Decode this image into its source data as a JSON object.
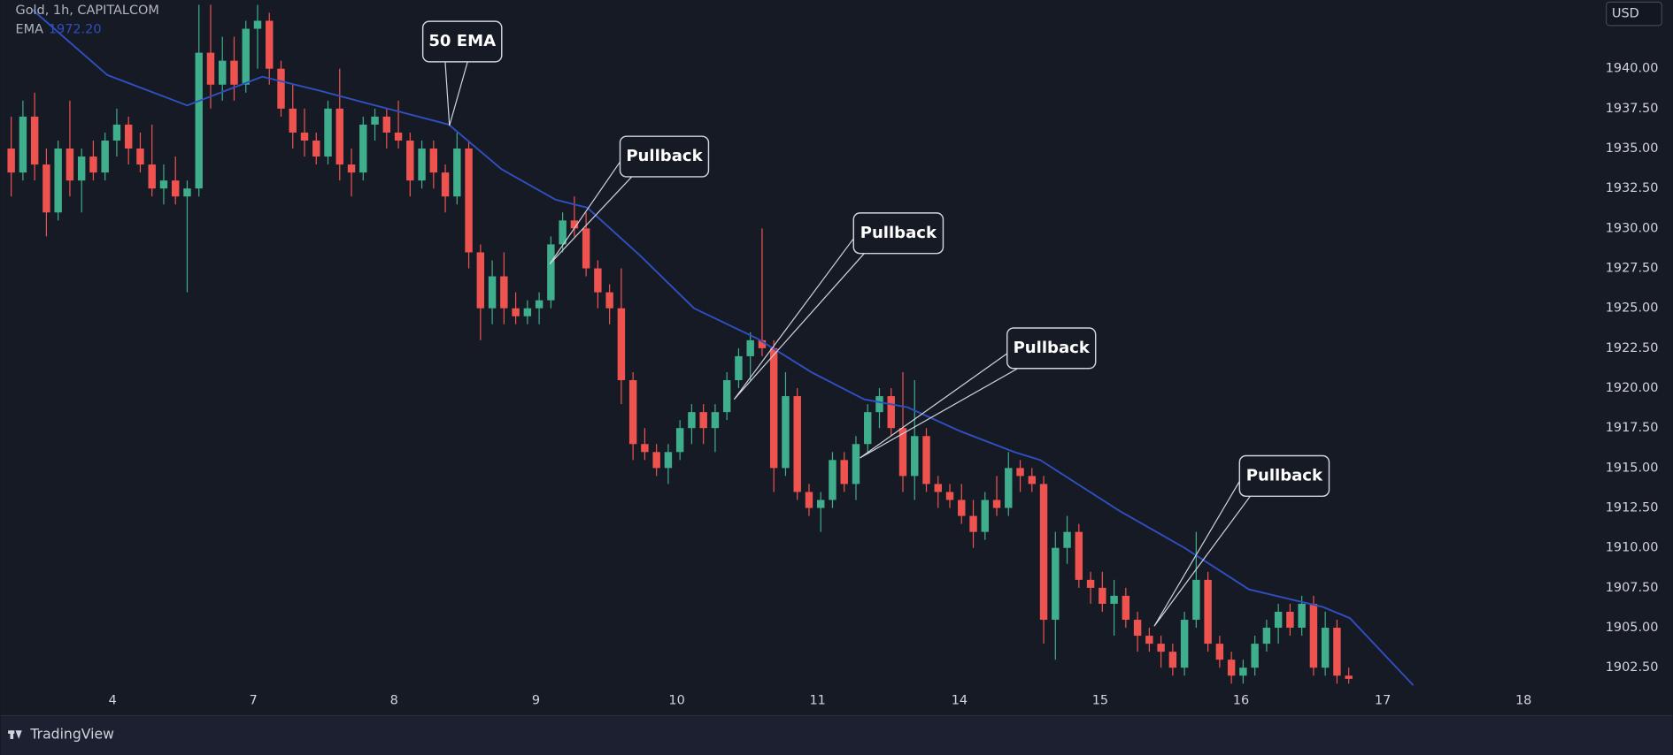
{
  "chart_data": {
    "type": "candlestick",
    "title": "Gold, 1h, CAPITALCOM",
    "currency": "USD",
    "brand": "TradingView",
    "up_color": "#3fae8c",
    "down_color": "#ef5350",
    "xlim": [
      -0.45,
      134.5
    ],
    "ylim": [
      1901.3,
      1944.3
    ],
    "xticks": [
      {
        "value": 8.64,
        "label": "4"
      },
      {
        "value": 20.64,
        "label": "7"
      },
      {
        "value": 32.64,
        "label": "8"
      },
      {
        "value": 44.73,
        "label": "9"
      },
      {
        "value": 56.73,
        "label": "10"
      },
      {
        "value": 68.73,
        "label": "11"
      },
      {
        "value": 80.82,
        "label": "14"
      },
      {
        "value": 92.82,
        "label": "15"
      },
      {
        "value": 104.82,
        "label": "16"
      },
      {
        "value": 116.9,
        "label": "17"
      },
      {
        "value": 128.9,
        "label": "18"
      }
    ],
    "yticks": [
      {
        "value": 1902.5,
        "label": "1902.50"
      },
      {
        "value": 1905,
        "label": "1905.00"
      },
      {
        "value": 1907.5,
        "label": "1907.50"
      },
      {
        "value": 1910,
        "label": "1910.00"
      },
      {
        "value": 1912.5,
        "label": "1912.50"
      },
      {
        "value": 1915,
        "label": "1915.00"
      },
      {
        "value": 1917.5,
        "label": "1917.50"
      },
      {
        "value": 1920,
        "label": "1920.00"
      },
      {
        "value": 1922.5,
        "label": "1922.50"
      },
      {
        "value": 1925,
        "label": "1925.00"
      },
      {
        "value": 1927.5,
        "label": "1927.50"
      },
      {
        "value": 1930,
        "label": "1930.00"
      },
      {
        "value": 1932.5,
        "label": "1932.50"
      },
      {
        "value": 1935,
        "label": "1935.00"
      },
      {
        "value": 1937.5,
        "label": "1937.50"
      },
      {
        "value": 1940,
        "label": "1940.00"
      }
    ],
    "grid": false,
    "x": [
      0,
      1,
      2,
      3,
      4,
      5,
      6,
      7,
      8,
      9,
      10,
      11,
      12,
      13,
      14,
      15,
      16,
      17,
      18,
      19,
      20,
      21,
      22,
      23,
      24,
      25,
      26,
      27,
      28,
      29,
      30,
      31,
      32,
      33,
      34,
      35,
      36,
      37,
      38,
      39,
      40,
      41,
      42,
      43,
      44,
      45,
      46,
      47,
      48,
      49,
      50,
      51,
      52,
      53,
      54,
      55,
      56,
      57,
      58,
      59,
      60,
      61,
      62,
      63,
      64,
      65,
      66,
      67,
      68,
      69,
      70,
      71,
      72,
      73,
      74,
      75,
      76,
      77,
      78,
      79,
      80,
      81,
      82,
      83,
      84,
      85,
      86,
      87,
      88,
      89,
      90,
      91,
      92,
      93,
      94,
      95,
      96,
      97,
      98,
      99,
      100,
      101,
      102,
      103,
      104,
      105,
      106,
      107,
      108,
      109,
      110,
      111,
      112,
      113,
      114
    ],
    "open": [
      1935,
      1933.5,
      1937,
      1934,
      1931,
      1935,
      1933,
      1934.5,
      1933.5,
      1935.5,
      1936.5,
      1935,
      1934,
      1932.5,
      1933,
      1932,
      1932.5,
      1941,
      1939,
      1940.5,
      1939,
      1942.5,
      1943,
      1940,
      1937.5,
      1936,
      1935.5,
      1934.5,
      1937.5,
      1934,
      1933.5,
      1936.5,
      1937,
      1936,
      1935.5,
      1933,
      1935,
      1933.5,
      1932,
      1935,
      1928.5,
      1925,
      1927,
      1925,
      1924.5,
      1925,
      1925.5,
      1929,
      1930.5,
      1930,
      1927.5,
      1926,
      1925,
      1920.5,
      1916.5,
      1916,
      1915,
      1916,
      1917.5,
      1918.5,
      1917.5,
      1918.5,
      1920.5,
      1922,
      1923,
      1922.5,
      1915,
      1919.5,
      1913.5,
      1912.5,
      1913,
      1915.5,
      1914,
      1916.5,
      1918.5,
      1919.5,
      1917.5,
      1914.5,
      1917,
      1914,
      1913.5,
      1913,
      1912,
      1911,
      1913,
      1912.5,
      1915,
      1914.5,
      1914,
      1905.5,
      1910,
      1911,
      1908,
      1907.5,
      1906.5,
      1907,
      1905.5,
      1904.5,
      1904,
      1903.5,
      1902.5,
      1905.5,
      1908,
      1904,
      1903,
      1902,
      1902.5,
      1904,
      1905,
      1906,
      1905,
      1906.5,
      1902.5,
      1905,
      1902
    ],
    "high": [
      1937,
      1938,
      1938.5,
      1935,
      1935.5,
      1938,
      1935,
      1935.5,
      1936,
      1937.5,
      1937,
      1936,
      1936.5,
      1934,
      1934.5,
      1933,
      1944,
      1944,
      1942,
      1942,
      1943,
      1944,
      1943.5,
      1940.5,
      1939,
      1937.5,
      1936,
      1938,
      1940,
      1935,
      1937,
      1937.5,
      1937.5,
      1938,
      1936,
      1935.5,
      1935.5,
      1934,
      1936,
      1935.5,
      1929,
      1928,
      1928.5,
      1926,
      1925.5,
      1926,
      1929.5,
      1931,
      1932,
      1931,
      1928,
      1926.5,
      1927.5,
      1921,
      1917.5,
      1916.5,
      1916.5,
      1918,
      1919,
      1919,
      1919,
      1921,
      1922.5,
      1923.5,
      1930,
      1923,
      1921,
      1920,
      1914,
      1913.5,
      1916,
      1916,
      1917,
      1919,
      1920,
      1920,
      1921,
      1920.5,
      1917.5,
      1914.5,
      1914,
      1914,
      1913,
      1913.5,
      1914.5,
      1916,
      1915.5,
      1915,
      1914.5,
      1911,
      1912,
      1911.5,
      1908.5,
      1908.5,
      1908,
      1907.5,
      1906,
      1905,
      1904.5,
      1904,
      1906,
      1911,
      1908.5,
      1904.5,
      1903.5,
      1903,
      1904.5,
      1905.5,
      1906.5,
      1906.5,
      1907,
      1907,
      1906,
      1905.5,
      1902.5
    ],
    "low": [
      1932,
      1933,
      1933,
      1929.5,
      1930.5,
      1932,
      1931,
      1933,
      1933,
      1934.5,
      1934,
      1933.5,
      1932,
      1931.5,
      1931.5,
      1926,
      1932,
      1937.5,
      1938,
      1938,
      1938.5,
      1940,
      1939,
      1937,
      1935,
      1934.5,
      1934,
      1934,
      1933,
      1932,
      1933,
      1935.5,
      1935,
      1935,
      1932,
      1932.5,
      1932.5,
      1931,
      1931.5,
      1927.5,
      1923,
      1924,
      1924,
      1924,
      1924,
      1924,
      1925,
      1928.5,
      1929.5,
      1927,
      1925,
      1924,
      1919,
      1915.5,
      1915.5,
      1914.5,
      1914,
      1915.5,
      1916.5,
      1916.5,
      1916,
      1918,
      1920,
      1920.5,
      1922,
      1913.5,
      1914.5,
      1913,
      1912,
      1911,
      1912.5,
      1913.5,
      1913,
      1916,
      1917.5,
      1917,
      1913.5,
      1913,
      1913.5,
      1912.5,
      1912.5,
      1911.5,
      1910,
      1910.5,
      1912,
      1912,
      1913.5,
      1913.5,
      1904,
      1903,
      1909,
      1907.5,
      1906.5,
      1906,
      1904.5,
      1905,
      1903.5,
      1903.5,
      1902.5,
      1902,
      1902,
      1905,
      1903.5,
      1902.5,
      1901.5,
      1901.5,
      1902,
      1903.5,
      1904,
      1904.5,
      1904.5,
      1902,
      1902,
      1901.5,
      1901.5
    ],
    "close": [
      1933.5,
      1937,
      1934,
      1931,
      1935,
      1933,
      1934.5,
      1933.5,
      1935.5,
      1936.5,
      1935,
      1934,
      1932.5,
      1933,
      1932,
      1932.5,
      1941,
      1939,
      1940.5,
      1939,
      1942.5,
      1943,
      1940,
      1937.5,
      1936,
      1935.5,
      1934.5,
      1937.5,
      1934,
      1933.5,
      1936.5,
      1937,
      1936,
      1935.5,
      1933,
      1935,
      1933.5,
      1932,
      1935,
      1928.5,
      1925,
      1927,
      1925,
      1924.5,
      1925,
      1925.5,
      1929,
      1930.5,
      1930,
      1927.5,
      1926,
      1925,
      1920.5,
      1916.5,
      1916,
      1915,
      1916,
      1917.5,
      1918.5,
      1917.5,
      1918.5,
      1920.5,
      1922,
      1923,
      1922.5,
      1915,
      1919.5,
      1913.5,
      1912.5,
      1913,
      1915.5,
      1914,
      1916.5,
      1918.5,
      1919.5,
      1917.5,
      1914.5,
      1917,
      1914,
      1913.5,
      1913,
      1912,
      1911,
      1913,
      1912.5,
      1915,
      1914.5,
      1914,
      1905.5,
      1910,
      1911,
      1908,
      1907.5,
      1906.5,
      1907,
      1905.5,
      1904.5,
      1904,
      1903.5,
      1902.5,
      1905.5,
      1908,
      1904,
      1903,
      1902,
      1902.5,
      1904,
      1905,
      1906,
      1905,
      1906.5,
      1902.5,
      1905,
      1902,
      1901.8
    ],
    "ema": {
      "name": "EMA",
      "legend_value": "1972.20",
      "color": "#2f4fbf",
      "x": [
        1.8,
        8.2,
        15,
        21.4,
        26.4,
        30,
        37.3,
        41.8,
        46.4,
        49.1,
        53.6,
        58.2,
        63.6,
        68.2,
        72.7,
        76.4,
        80.9,
        85.5,
        87.7,
        94.5,
        100,
        105.5,
        111.8,
        114.1,
        119.5
      ],
      "values": [
        1943.7,
        1939.6,
        1937.7,
        1939.5,
        1938.6,
        1937.9,
        1936.5,
        1933.7,
        1931.8,
        1931.3,
        1928.3,
        1925,
        1923.1,
        1921,
        1919.3,
        1918.8,
        1917.3,
        1916,
        1915.5,
        1912.3,
        1910,
        1907.4,
        1906.3,
        1905.6,
        1901.4
      ]
    },
    "annotations": [
      "50 EMA",
      "Pullback",
      "Pullback",
      "Pullback",
      "Pullback"
    ]
  }
}
